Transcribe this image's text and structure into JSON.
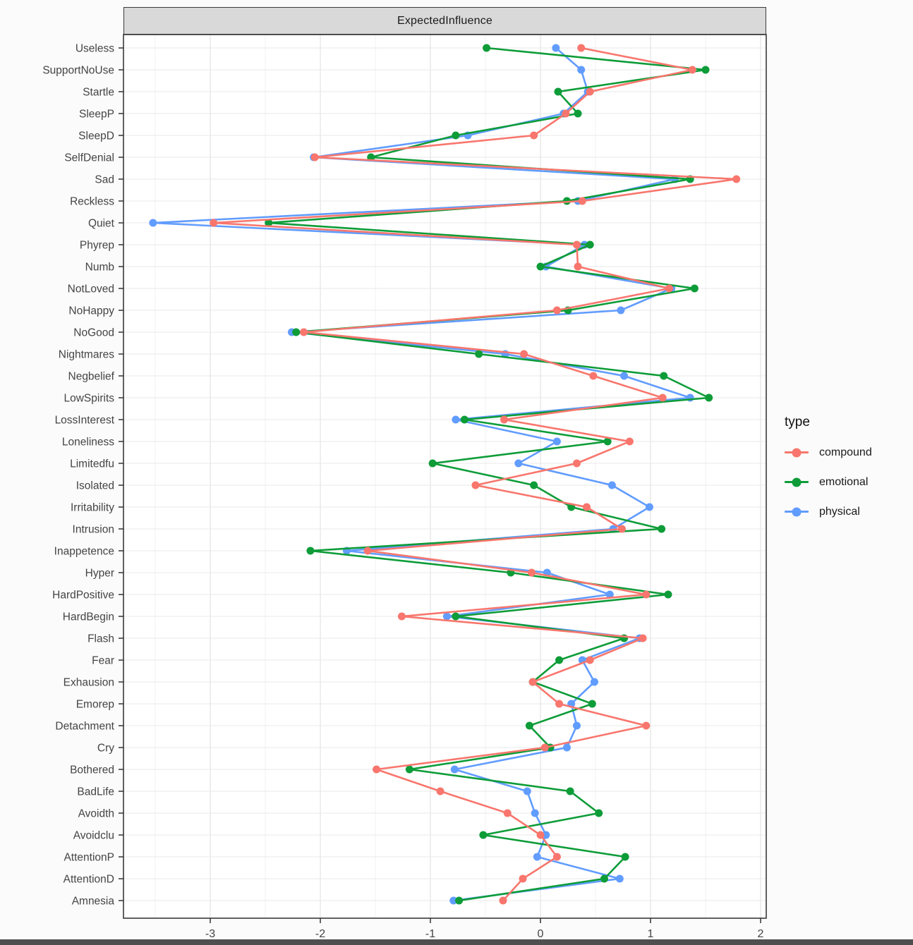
{
  "chart_data": {
    "type": "line",
    "title": "ExpectedInfluence",
    "orientation": "horizontal-dot-line",
    "xlabel": "",
    "ylabel": "",
    "x_ticks": [
      -3,
      -2,
      -1,
      0,
      1,
      2
    ],
    "x_minor_ticks": [
      -3.5,
      -2.5,
      -1.5,
      -0.5,
      0.5,
      1.5
    ],
    "xlim": [
      -3.79,
      2.05
    ],
    "grid": "major-and-minor",
    "panel_background": "#ffffff",
    "strip_background": "#d9d9d9",
    "categories": [
      "Useless",
      "SupportNoUse",
      "Startle",
      "SleepP",
      "SleepD",
      "SelfDenial",
      "Sad",
      "Reckless",
      "Quiet",
      "Phyrep",
      "Numb",
      "NotLoved",
      "NoHappy",
      "NoGood",
      "Nightmares",
      "Negbelief",
      "LowSpirits",
      "LossInterest",
      "Loneliness",
      "Limitedfu",
      "Isolated",
      "Irritability",
      "Intrusion",
      "Inappetence",
      "Hyper",
      "HardPositive",
      "HardBegin",
      "Flash",
      "Fear",
      "Exhausion",
      "Emorep",
      "Detachment",
      "Cry",
      "Bothered",
      "BadLife",
      "Avoidth",
      "Avoidclu",
      "AttentionP",
      "AttentionD",
      "Amnesia"
    ],
    "series": [
      {
        "name": "compound",
        "color": "#F8766D",
        "values": [
          0.37,
          1.38,
          0.45,
          0.23,
          -0.06,
          -2.05,
          1.78,
          0.38,
          -2.97,
          0.33,
          0.34,
          1.17,
          0.15,
          -2.15,
          -0.15,
          0.48,
          1.11,
          -0.33,
          0.81,
          0.33,
          -0.59,
          0.42,
          0.74,
          -1.57,
          -0.08,
          0.96,
          -1.26,
          0.93,
          0.45,
          -0.07,
          0.17,
          0.96,
          0.04,
          -1.49,
          -0.91,
          -0.3,
          0.0,
          0.15,
          -0.16,
          -0.34
        ]
      },
      {
        "name": "emotional",
        "color": "#0D9C38",
        "values": [
          -0.49,
          1.5,
          0.16,
          0.34,
          -0.77,
          -1.54,
          1.36,
          0.24,
          -2.47,
          0.45,
          0.0,
          1.4,
          0.25,
          -2.22,
          -0.56,
          1.12,
          1.53,
          -0.69,
          0.61,
          -0.98,
          -0.06,
          0.28,
          1.1,
          -2.09,
          -0.27,
          1.16,
          -0.77,
          0.76,
          0.17,
          -0.07,
          0.47,
          -0.1,
          0.09,
          -1.19,
          0.27,
          0.53,
          -0.52,
          0.77,
          0.58,
          -0.74
        ]
      },
      {
        "name": "physical",
        "color": "#619CFF",
        "values": [
          0.14,
          0.37,
          0.43,
          0.21,
          -0.66,
          -2.06,
          1.22,
          0.34,
          -3.52,
          0.4,
          0.05,
          1.19,
          0.73,
          -2.26,
          -0.32,
          0.76,
          1.36,
          -0.77,
          0.15,
          -0.2,
          0.65,
          0.99,
          0.66,
          -1.76,
          0.06,
          0.63,
          -0.85,
          0.9,
          0.38,
          0.49,
          0.28,
          0.33,
          0.24,
          -0.78,
          -0.12,
          -0.05,
          0.05,
          -0.03,
          0.72,
          -0.79
        ]
      }
    ],
    "legend": {
      "title": "type",
      "position": "right"
    }
  }
}
